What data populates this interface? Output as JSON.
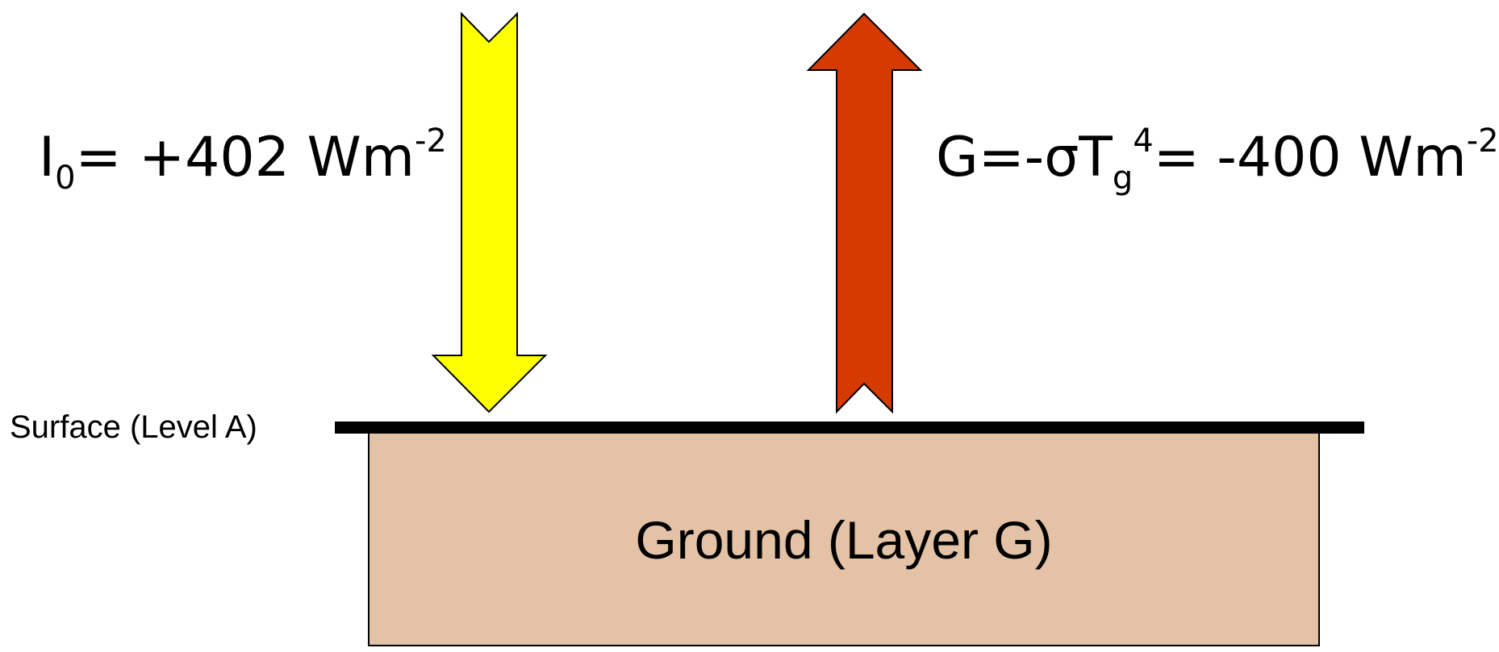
{
  "incoming_flux": {
    "symbol": "I",
    "subscript": "0",
    "value_text": "= +402 Wm",
    "exponent": "-2",
    "arrow_color": "#FFFF00"
  },
  "outgoing_flux": {
    "prefix": "G=-σT",
    "subscript": "g",
    "power": "4",
    "value_text": "= -400 Wm",
    "exponent": "-2",
    "arrow_color": "#D53A00"
  },
  "surface": {
    "label": "Surface (Level A)",
    "line_color": "#000000"
  },
  "ground": {
    "label": "Ground (Layer G)",
    "fill_color": "#E3C2A6"
  }
}
